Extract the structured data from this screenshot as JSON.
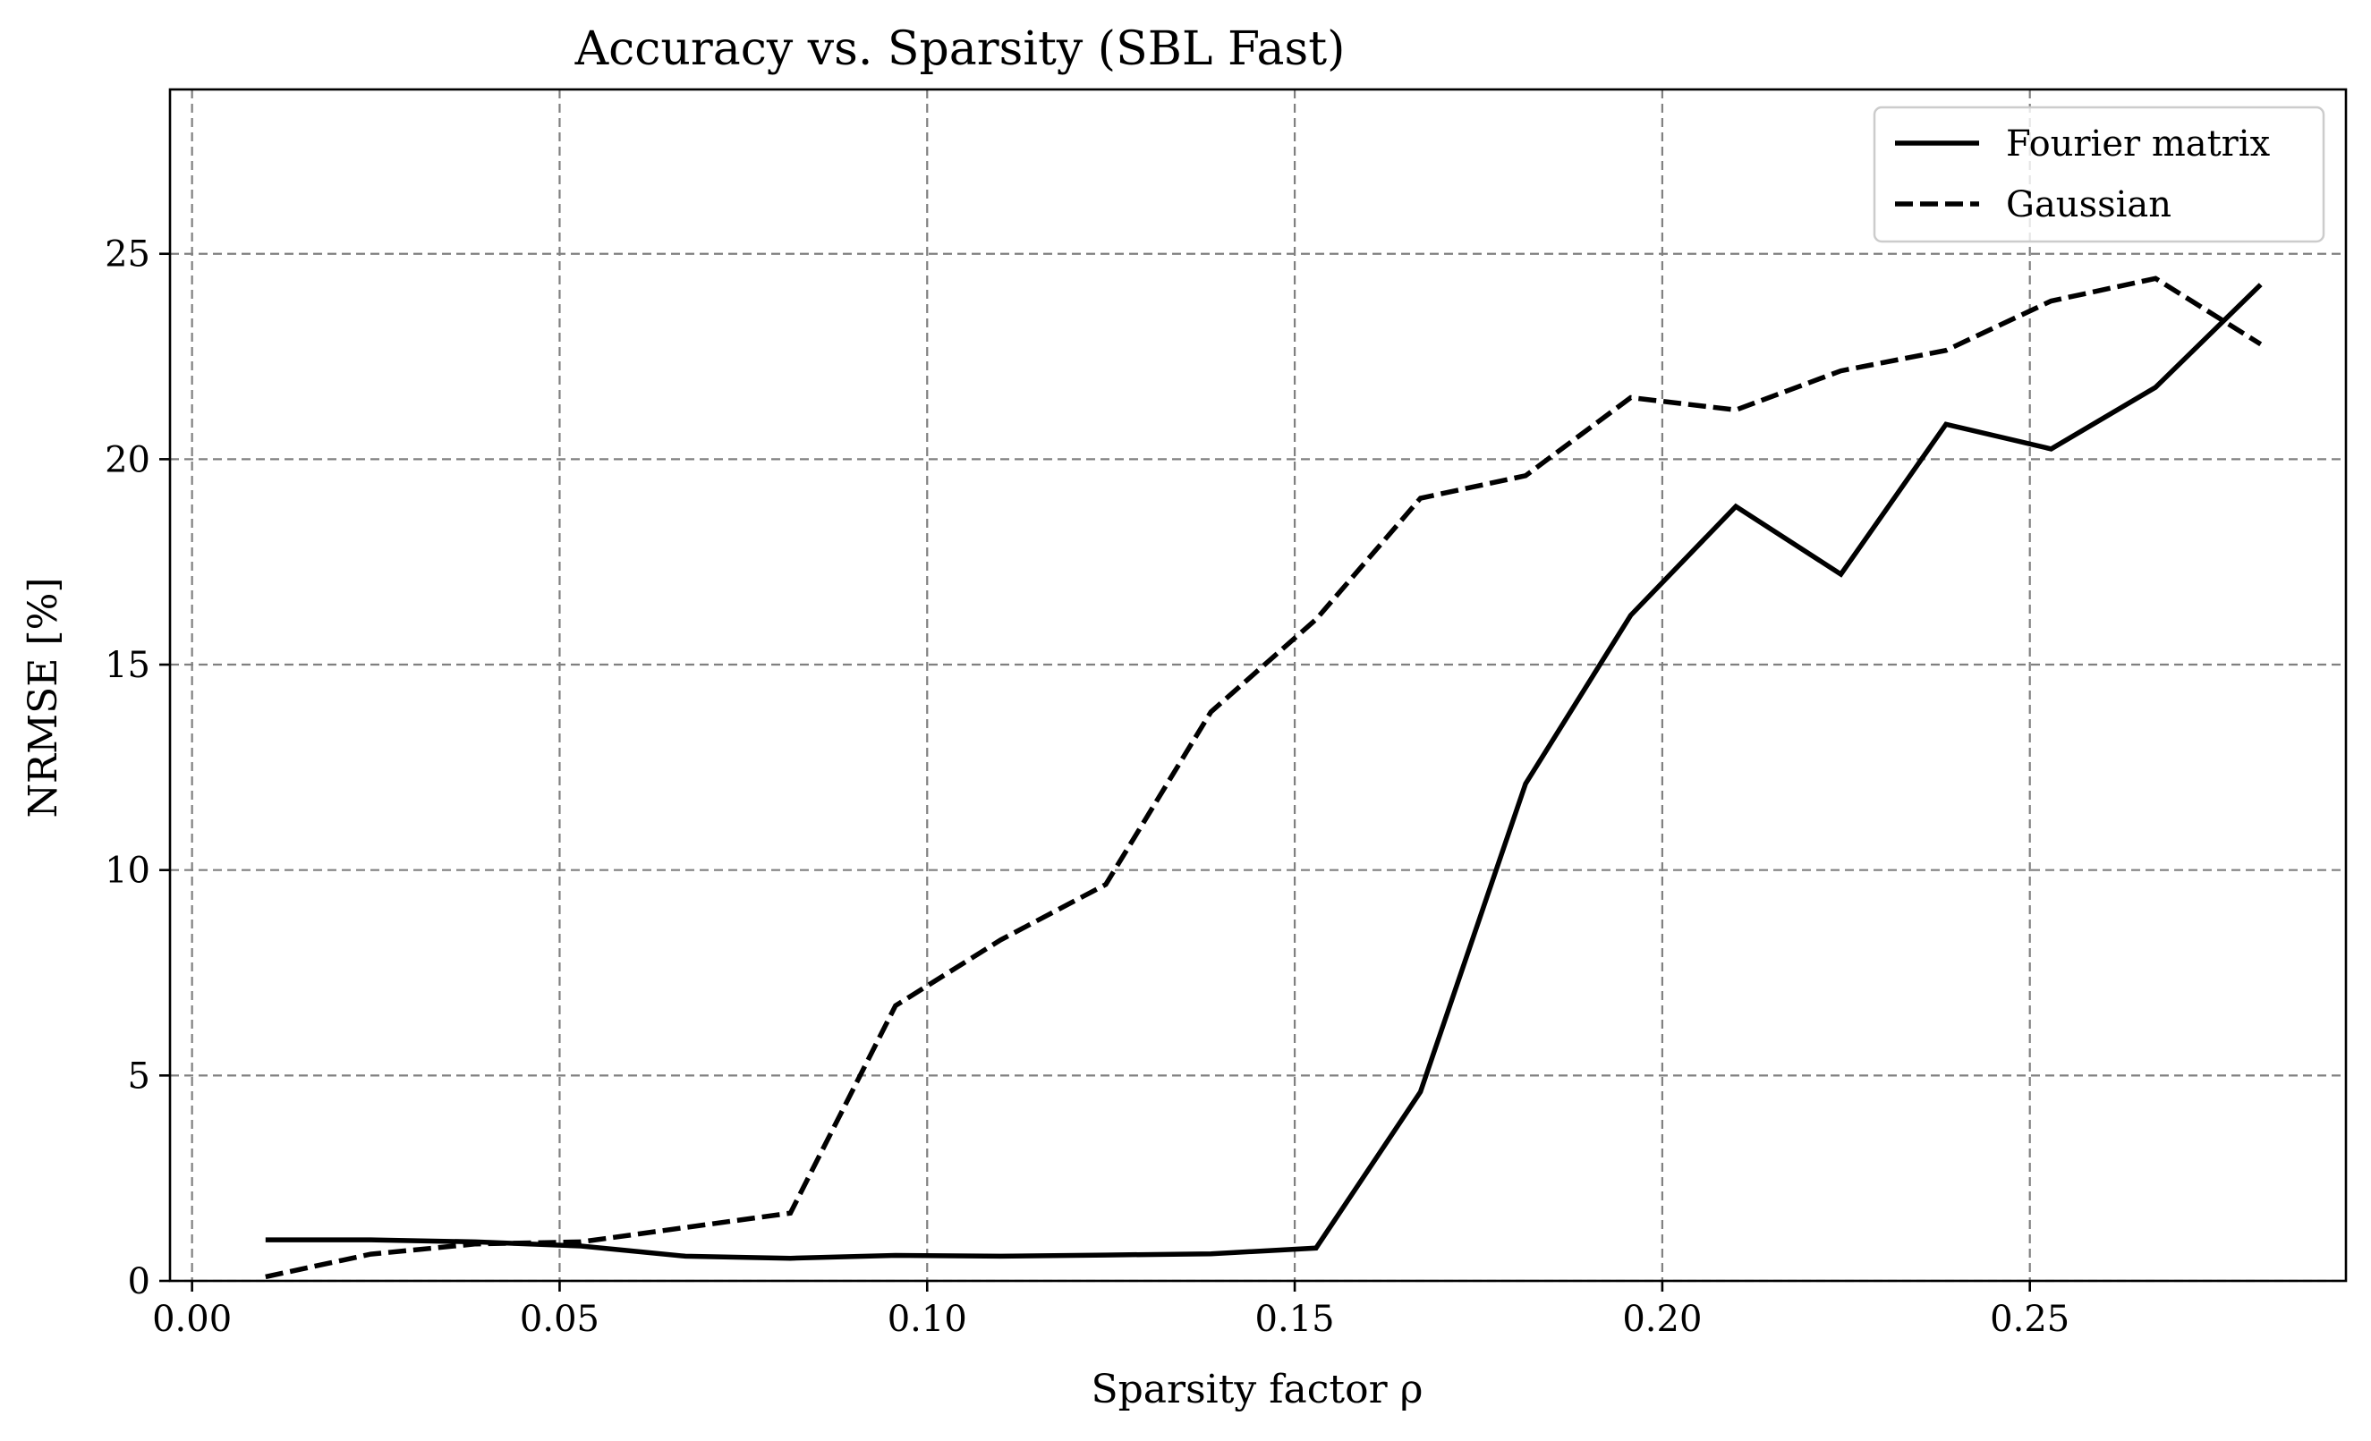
{
  "chart_data": {
    "type": "line",
    "title": "Accuracy vs. Sparsity (SBL Fast)",
    "xlabel": "Sparsity factor ρ",
    "ylabel": "NRMSE [%]",
    "xlim": [
      -0.003,
      0.293
    ],
    "ylim": [
      0,
      29
    ],
    "grid": true,
    "legend_position": "top-right",
    "xticks": [
      0.0,
      0.05,
      0.1,
      0.15,
      0.2,
      0.25
    ],
    "xtick_labels": [
      "0.00",
      "0.05",
      "0.10",
      "0.15",
      "0.20",
      "0.25"
    ],
    "yticks": [
      0,
      5,
      10,
      15,
      20,
      25
    ],
    "ytick_labels": [
      "0",
      "5",
      "10",
      "15",
      "20",
      "25"
    ],
    "x": [
      0.01,
      0.0243,
      0.0386,
      0.0529,
      0.0671,
      0.0814,
      0.0957,
      0.11,
      0.1243,
      0.1386,
      0.1529,
      0.1671,
      0.1814,
      0.1957,
      0.21,
      0.2243,
      0.2386,
      0.2529,
      0.2671,
      0.2814
    ],
    "series": [
      {
        "name": "Fourier matrix",
        "style": "solid",
        "color": "#000000",
        "values": [
          1.0,
          1.0,
          0.95,
          0.85,
          0.6,
          0.55,
          0.62,
          0.6,
          0.63,
          0.66,
          0.8,
          4.6,
          12.1,
          16.2,
          18.85,
          17.2,
          20.85,
          20.25,
          21.75,
          24.25
        ]
      },
      {
        "name": "Gaussian",
        "style": "dashed",
        "color": "#000000",
        "values": [
          0.1,
          0.65,
          0.9,
          0.95,
          1.3,
          1.65,
          6.7,
          8.3,
          9.65,
          13.85,
          16.1,
          19.05,
          19.6,
          21.5,
          21.2,
          22.15,
          22.65,
          23.85,
          24.4,
          22.8
        ]
      }
    ]
  }
}
